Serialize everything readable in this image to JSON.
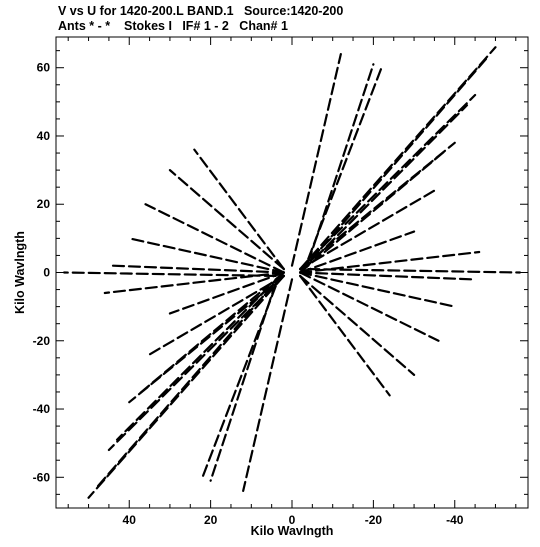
{
  "chart_data": {
    "type": "scatter",
    "title": "V vs U for 1420-200.L BAND.1   Source:1420-200",
    "subtitle": "Ants * - *    Stokes I   IF# 1 - 2   Chan# 1",
    "xlabel": "Kilo Wavlngth",
    "ylabel": "Kilo Wavlngth",
    "xlim": [
      58,
      -58
    ],
    "ylim": [
      -69,
      69
    ],
    "x_ticks": [
      40,
      20,
      0,
      -20,
      -40
    ],
    "y_ticks": [
      60,
      40,
      20,
      0,
      -20,
      -40,
      -60
    ],
    "x_tick_labels": [
      "40",
      "20",
      "0",
      "-20",
      "-40"
    ],
    "y_tick_labels": [
      "60",
      "40",
      "20",
      "0",
      "-20",
      "-40",
      "-60"
    ],
    "grid": false,
    "series": [
      {
        "description_values": "uv-track segments [u1, v1, u2, v2] in kilo-wavelengths",
        "segments": [
          [
            -2,
            1,
            -50,
            66
          ],
          [
            -2,
            0,
            -48,
            63
          ],
          [
            -4,
            3,
            -20,
            61
          ],
          [
            2,
            -1,
            50,
            -66
          ],
          [
            2,
            0,
            48,
            -63
          ],
          [
            4,
            -3,
            20,
            -61
          ],
          [
            -2,
            1,
            -45,
            52
          ],
          [
            -3,
            1,
            -43,
            49
          ],
          [
            2,
            -1,
            45,
            -52
          ],
          [
            3,
            -1,
            43,
            -49
          ],
          [
            -2,
            1,
            -40,
            38
          ],
          [
            -2,
            0,
            -38,
            36
          ],
          [
            2,
            -1,
            40,
            -38
          ],
          [
            2,
            0,
            38,
            -36
          ],
          [
            -2,
            1,
            -35,
            24
          ],
          [
            2,
            -1,
            35,
            -24
          ],
          [
            -2,
            0,
            -30,
            12
          ],
          [
            2,
            0,
            30,
            -12
          ],
          [
            -2,
            0,
            -46,
            6
          ],
          [
            2,
            0,
            46,
            -6
          ],
          [
            -2,
            0,
            -44,
            -2
          ],
          [
            2,
            0,
            44,
            2
          ],
          [
            -2,
            0,
            -40,
            -10
          ],
          [
            2,
            0,
            40,
            10
          ],
          [
            -2,
            0,
            -36,
            -20
          ],
          [
            2,
            0,
            36,
            20
          ],
          [
            -2,
            -1,
            -30,
            -30
          ],
          [
            2,
            1,
            30,
            30
          ],
          [
            -2,
            -1,
            -24,
            -36
          ],
          [
            2,
            1,
            24,
            36
          ],
          [
            0,
            2,
            -12,
            64
          ],
          [
            0,
            -2,
            12,
            -64
          ],
          [
            -4,
            4,
            -22,
            60
          ],
          [
            4,
            -4,
            22,
            -60
          ],
          [
            -4,
            1,
            -56,
            0
          ],
          [
            4,
            -1,
            56,
            0
          ]
        ]
      }
    ]
  }
}
